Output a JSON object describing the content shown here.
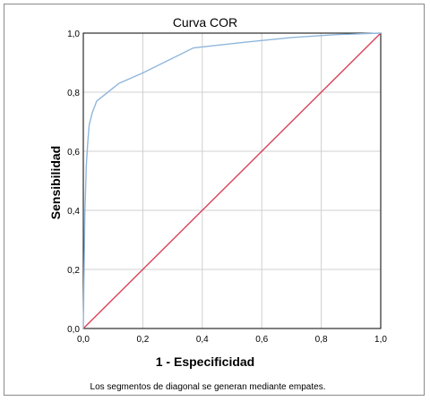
{
  "chart_data": {
    "type": "line",
    "title": "Curva COR",
    "xlabel": "1 - Especificidad",
    "ylabel": "Sensibilidad",
    "xlim": [
      0,
      1
    ],
    "ylim": [
      0,
      1
    ],
    "grid": true,
    "x_ticks": [
      "0,0",
      "0,2",
      "0,4",
      "0,6",
      "0,8",
      "1,0"
    ],
    "y_ticks": [
      "0,0",
      "0,2",
      "0,4",
      "0,6",
      "0,8",
      "1,0"
    ],
    "series": [
      {
        "color": "#8fb7dc",
        "x": [
          0,
          0.005,
          0.01,
          0.015,
          0.02,
          0.03,
          0.045,
          0.12,
          0.2,
          0.37,
          0.55,
          0.7,
          0.85,
          1.0
        ],
        "y": [
          0,
          0.38,
          0.55,
          0.63,
          0.69,
          0.73,
          0.77,
          0.83,
          0.865,
          0.95,
          0.97,
          0.985,
          0.995,
          1.0
        ]
      },
      {
        "color": "#d9435a",
        "x": [
          0,
          1
        ],
        "y": [
          0,
          1
        ]
      }
    ],
    "footnote": "Los segmentos de diagonal se generan mediante empates."
  }
}
